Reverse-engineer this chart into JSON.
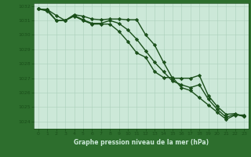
{
  "bg_color": "#cce8d8",
  "plot_bg_color": "#cce8d8",
  "label_bg_color": "#2d6e2d",
  "grid_color": "#aacfbb",
  "line_color": "#1a4f1a",
  "text_color": "#1a4f1a",
  "xlabel": "Graphe pression niveau de la mer (hPa)",
  "xlabel_color": "#cce8d8",
  "ylim": [
    1023.5,
    1032.2
  ],
  "xlim": [
    -0.5,
    23.5
  ],
  "yticks": [
    1024,
    1025,
    1026,
    1027,
    1028,
    1029,
    1030,
    1031,
    1032
  ],
  "xticks": [
    0,
    1,
    2,
    3,
    4,
    5,
    6,
    7,
    8,
    9,
    10,
    11,
    12,
    13,
    14,
    15,
    16,
    17,
    18,
    19,
    20,
    21,
    22,
    23
  ],
  "series": [
    {
      "x": [
        0,
        1,
        2,
        3,
        4,
        5,
        6,
        7,
        8,
        9,
        10,
        11,
        12,
        13,
        14,
        15,
        16,
        17,
        18,
        19,
        20,
        21,
        22,
        23
      ],
      "y": [
        1031.8,
        1031.75,
        1031.35,
        1031.0,
        1031.4,
        1031.3,
        1031.1,
        1031.05,
        1031.1,
        1031.1,
        1031.05,
        1031.05,
        1030.0,
        1029.3,
        1028.1,
        1027.0,
        1027.0,
        1027.0,
        1027.2,
        1025.8,
        1025.05,
        1024.5,
        1024.55,
        1024.35
      ],
      "marker": "D",
      "markersize": 2.2,
      "linewidth": 1.0
    },
    {
      "x": [
        0,
        1,
        2,
        3,
        4,
        5,
        6,
        7,
        8,
        9,
        10,
        11,
        12,
        13,
        14,
        15,
        16,
        17,
        18,
        19,
        20,
        21,
        22,
        23
      ],
      "y": [
        1031.8,
        1031.75,
        1031.0,
        1031.0,
        1031.35,
        1031.05,
        1030.8,
        1030.8,
        1031.0,
        1030.8,
        1030.35,
        1029.7,
        1028.9,
        1028.1,
        1027.45,
        1026.8,
        1026.55,
        1026.35,
        1026.55,
        1025.55,
        1024.85,
        1024.3,
        1024.5,
        1024.35
      ],
      "marker": "D",
      "markersize": 2.2,
      "linewidth": 1.0
    },
    {
      "x": [
        0,
        1,
        2,
        3,
        4,
        5,
        6,
        7,
        8,
        9,
        10,
        11,
        12,
        13,
        14,
        15,
        16,
        17,
        18,
        19,
        20,
        21,
        22,
        23
      ],
      "y": [
        1031.8,
        1031.65,
        1031.0,
        1031.0,
        1031.3,
        1031.0,
        1030.75,
        1030.75,
        1030.75,
        1030.25,
        1029.55,
        1028.75,
        1028.45,
        1027.45,
        1027.05,
        1027.05,
        1026.35,
        1026.15,
        1025.65,
        1025.15,
        1024.65,
        1024.15,
        1024.45,
        1024.45
      ],
      "marker": "D",
      "markersize": 2.2,
      "linewidth": 1.0
    }
  ]
}
